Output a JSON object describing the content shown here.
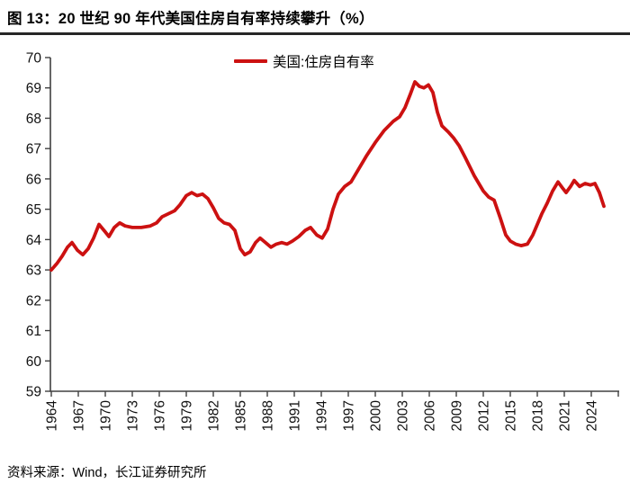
{
  "header": {
    "figure_title": "图 13：20 世纪 90 年代美国住房自有率持续攀升（%）"
  },
  "footer": {
    "source": "资料来源：Wind，长江证券研究所"
  },
  "colors": {
    "series_red": "#CC1111",
    "axis": "#404040",
    "rule": "#262626",
    "text": "#000000"
  },
  "chart_data": {
    "type": "line",
    "title": "图 13：20 世纪 90 年代美国住房自有率持续攀升（%）",
    "xlabel": "",
    "ylabel": "",
    "ylim": [
      59,
      70
    ],
    "xlim": [
      1964,
      2027
    ],
    "grid": false,
    "legend_position": "top-center",
    "yticks": [
      70,
      69,
      68,
      67,
      66,
      65,
      64,
      63,
      62,
      61,
      60,
      59
    ],
    "xticks": [
      1964,
      1967,
      1970,
      1973,
      1976,
      1979,
      1982,
      1985,
      1988,
      1991,
      1994,
      1997,
      2000,
      2003,
      2006,
      2009,
      2012,
      2015,
      2018,
      2021,
      2024
    ],
    "legend": [
      {
        "name": "美国:住房自有率",
        "color": "#CC1111"
      }
    ],
    "series": [
      {
        "name": "美国:住房自有率",
        "color": "#CC1111",
        "points": [
          [
            1964.0,
            63.0
          ],
          [
            1964.6,
            63.2
          ],
          [
            1965.2,
            63.45
          ],
          [
            1965.8,
            63.75
          ],
          [
            1966.3,
            63.9
          ],
          [
            1966.9,
            63.65
          ],
          [
            1967.5,
            63.5
          ],
          [
            1968.1,
            63.7
          ],
          [
            1968.7,
            64.05
          ],
          [
            1969.3,
            64.5
          ],
          [
            1970.0,
            64.25
          ],
          [
            1970.4,
            64.1
          ],
          [
            1971.0,
            64.4
          ],
          [
            1971.6,
            64.55
          ],
          [
            1972.2,
            64.45
          ],
          [
            1973.0,
            64.4
          ],
          [
            1974.0,
            64.4
          ],
          [
            1975.0,
            64.45
          ],
          [
            1975.7,
            64.55
          ],
          [
            1976.3,
            64.75
          ],
          [
            1977.0,
            64.85
          ],
          [
            1977.7,
            64.95
          ],
          [
            1978.3,
            65.15
          ],
          [
            1979.0,
            65.45
          ],
          [
            1979.6,
            65.55
          ],
          [
            1980.2,
            65.45
          ],
          [
            1980.8,
            65.5
          ],
          [
            1981.4,
            65.35
          ],
          [
            1982.0,
            65.05
          ],
          [
            1982.6,
            64.7
          ],
          [
            1983.2,
            64.55
          ],
          [
            1983.8,
            64.5
          ],
          [
            1984.4,
            64.3
          ],
          [
            1985.0,
            63.7
          ],
          [
            1985.5,
            63.5
          ],
          [
            1986.1,
            63.6
          ],
          [
            1986.7,
            63.9
          ],
          [
            1987.2,
            64.05
          ],
          [
            1987.8,
            63.9
          ],
          [
            1988.4,
            63.75
          ],
          [
            1989.0,
            63.85
          ],
          [
            1989.6,
            63.9
          ],
          [
            1990.2,
            63.85
          ],
          [
            1990.8,
            63.95
          ],
          [
            1991.5,
            64.1
          ],
          [
            1992.2,
            64.3
          ],
          [
            1992.8,
            64.4
          ],
          [
            1993.5,
            64.15
          ],
          [
            1994.1,
            64.05
          ],
          [
            1994.7,
            64.35
          ],
          [
            1995.3,
            65.0
          ],
          [
            1995.9,
            65.5
          ],
          [
            1996.6,
            65.75
          ],
          [
            1997.3,
            65.9
          ],
          [
            1998.1,
            66.3
          ],
          [
            1999.0,
            66.75
          ],
          [
            2000.0,
            67.2
          ],
          [
            2001.0,
            67.6
          ],
          [
            2002.0,
            67.9
          ],
          [
            2002.7,
            68.05
          ],
          [
            2003.3,
            68.35
          ],
          [
            2003.9,
            68.8
          ],
          [
            2004.4,
            69.2
          ],
          [
            2004.9,
            69.05
          ],
          [
            2005.4,
            69.0
          ],
          [
            2005.9,
            69.1
          ],
          [
            2006.4,
            68.85
          ],
          [
            2006.9,
            68.2
          ],
          [
            2007.4,
            67.75
          ],
          [
            2008.1,
            67.55
          ],
          [
            2008.7,
            67.35
          ],
          [
            2009.3,
            67.1
          ],
          [
            2010.0,
            66.7
          ],
          [
            2011.0,
            66.1
          ],
          [
            2012.0,
            65.6
          ],
          [
            2012.6,
            65.4
          ],
          [
            2013.2,
            65.3
          ],
          [
            2013.9,
            64.7
          ],
          [
            2014.5,
            64.15
          ],
          [
            2015.0,
            63.95
          ],
          [
            2015.6,
            63.85
          ],
          [
            2016.2,
            63.8
          ],
          [
            2016.9,
            63.85
          ],
          [
            2017.5,
            64.15
          ],
          [
            2018.0,
            64.5
          ],
          [
            2018.5,
            64.85
          ],
          [
            2019.1,
            65.2
          ],
          [
            2019.7,
            65.6
          ],
          [
            2020.3,
            65.9
          ],
          [
            2020.8,
            65.7
          ],
          [
            2021.2,
            65.55
          ],
          [
            2021.7,
            65.75
          ],
          [
            2022.1,
            65.95
          ],
          [
            2022.7,
            65.75
          ],
          [
            2023.3,
            65.85
          ],
          [
            2023.9,
            65.8
          ],
          [
            2024.4,
            65.85
          ],
          [
            2024.9,
            65.55
          ],
          [
            2025.4,
            65.1
          ]
        ]
      }
    ]
  }
}
